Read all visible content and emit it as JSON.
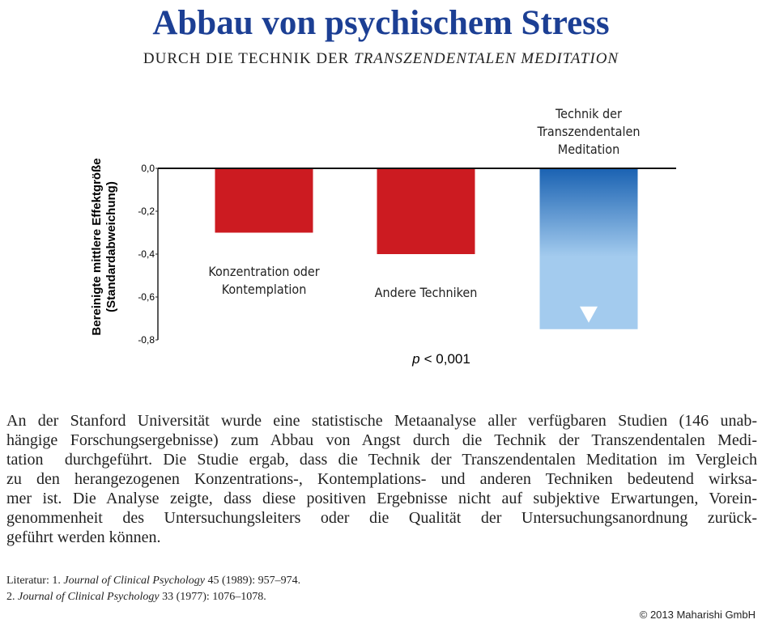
{
  "chart_data": {
    "type": "bar",
    "title": "Abbau von psychischem Stress",
    "subtitle": {
      "plain": "DURCH DIE TECHNIK DER",
      "italic": "TRANSZENDENTALEN MEDITATION"
    },
    "ylabel": [
      "Bereinigte mittlere Effektgröße",
      "(Standardabweichung)"
    ],
    "categories": [
      "Konzentration oder Kontemplation",
      "Andere Techniken",
      "Technik der Transzendentalen Meditation"
    ],
    "values": [
      -0.3,
      -0.4,
      -0.75
    ],
    "colors": [
      "#cc1b21",
      "#cc1b21",
      "#1a62b2"
    ],
    "gradient_to": [
      null,
      null,
      "#a3cbee"
    ],
    "ylim": [
      -0.8,
      0
    ],
    "yticks": [
      {
        "value": 0,
        "label": "0,0"
      },
      {
        "value": -0.2,
        "label": "-0,2"
      },
      {
        "value": -0.4,
        "label": "-0,4"
      },
      {
        "value": -0.6,
        "label": "-0,6"
      },
      {
        "value": -0.8,
        "label": "-0,8"
      }
    ],
    "annotation": {
      "symbol": "p",
      "text": "< 0,001"
    }
  },
  "body": {
    "lines": [
      "An der Stanford Universität wurde eine statistische Metaanalyse aller verfügbaren Studien (146 unab-",
      "hängige Forschungsergebnisse) zum Abbau von Angst durch die Technik der Transzendentalen Medi-",
      "tation  durchgeführt. Die Studie ergab, dass die Technik der Transzendentalen Meditation im Vergleich",
      "zu den herangezogenen Konzentrations-, Kontemplations- und anderen Techniken bedeutend wirksa-",
      "mer ist. Die Analyse zeigte, dass diese positiven Ergebnisse nicht auf subjektive Erwartungen, Vorein-",
      "genommenheit des Untersuchungsleiters oder die Qualität der Untersuchungsanordnung zurück-",
      "geführt werden können."
    ]
  },
  "references": [
    {
      "prefix": "Literatur: 1.",
      "journal": "Journal of Clinical Psychology",
      "rest": "45 (1989): 957–974."
    },
    {
      "prefix": "2.",
      "journal": "Journal of Clinical Psychology",
      "rest": "33 (1977): 1076–1078."
    }
  ],
  "footer": "© 2013  Maharishi GmbH"
}
